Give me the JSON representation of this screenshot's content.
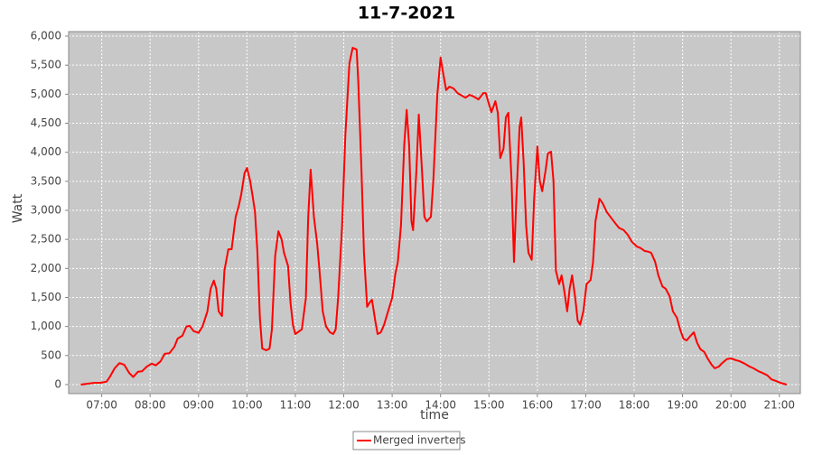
{
  "chart_data": {
    "type": "line",
    "title": "11-7-2021",
    "x_label": "time",
    "y_label": "Watt",
    "x": [
      "06:34",
      "06:45",
      "06:51",
      "06:59",
      "07:06",
      "07:10",
      "07:16",
      "07:22",
      "07:28",
      "07:34",
      "07:39",
      "07:45",
      "07:50",
      "07:56",
      "08:02",
      "08:07",
      "08:13",
      "08:18",
      "08:24",
      "08:30",
      "08:34",
      "08:40",
      "08:45",
      "08:49",
      "08:54",
      "09:00",
      "09:05",
      "09:11",
      "09:15",
      "09:19",
      "09:22",
      "09:25",
      "09:29",
      "09:32",
      "09:37",
      "09:41",
      "09:46",
      "09:50",
      "09:53",
      "09:57",
      "10:00",
      "10:04",
      "10:07",
      "10:10",
      "10:13",
      "10:16",
      "10:19",
      "10:24",
      "10:28",
      "10:31",
      "10:35",
      "10:39",
      "10:43",
      "10:46",
      "10:51",
      "10:54",
      "10:57",
      "11:00",
      "11:05",
      "11:08",
      "11:13",
      "11:16",
      "11:19",
      "11:23",
      "11:27",
      "11:30",
      "11:34",
      "11:38",
      "11:43",
      "11:47",
      "11:50",
      "11:53",
      "11:58",
      "12:02",
      "12:07",
      "12:11",
      "12:16",
      "12:18",
      "12:22",
      "12:25",
      "12:29",
      "12:32",
      "12:35",
      "12:39",
      "12:42",
      "12:46",
      "12:50",
      "12:55",
      "13:00",
      "13:04",
      "13:07",
      "13:11",
      "13:15",
      "13:18",
      "13:21",
      "13:24",
      "13:26",
      "13:30",
      "13:33",
      "13:37",
      "13:40",
      "13:43",
      "13:48",
      "13:51",
      "13:56",
      "14:00",
      "14:03",
      "14:07",
      "14:11",
      "14:16",
      "14:21",
      "14:27",
      "14:31",
      "14:36",
      "14:41",
      "14:47",
      "14:53",
      "14:56",
      "15:00",
      "15:03",
      "15:08",
      "15:11",
      "15:14",
      "15:18",
      "15:21",
      "15:24",
      "15:28",
      "15:31",
      "15:34",
      "15:38",
      "15:40",
      "15:43",
      "15:46",
      "15:49",
      "15:53",
      "15:56",
      "16:00",
      "16:03",
      "16:06",
      "16:10",
      "16:13",
      "16:17",
      "16:20",
      "16:23",
      "16:27",
      "16:30",
      "16:33",
      "16:37",
      "16:40",
      "16:43",
      "16:47",
      "16:50",
      "16:53",
      "16:57",
      "17:01",
      "17:06",
      "17:09",
      "17:12",
      "17:17",
      "17:21",
      "17:26",
      "17:31",
      "17:37",
      "17:41",
      "17:47",
      "17:52",
      "17:57",
      "18:03",
      "18:08",
      "18:13",
      "18:17",
      "18:21",
      "18:26",
      "18:30",
      "18:35",
      "18:39",
      "18:44",
      "18:48",
      "18:53",
      "18:57",
      "19:01",
      "19:05",
      "19:10",
      "19:14",
      "19:18",
      "19:22",
      "19:27",
      "19:31",
      "19:36",
      "19:40",
      "19:45",
      "19:49",
      "19:55",
      "20:00",
      "20:06",
      "20:11",
      "20:17",
      "20:23",
      "20:28",
      "20:34",
      "20:39",
      "20:45",
      "20:50",
      "20:56",
      "21:01",
      "21:09"
    ],
    "series": [
      {
        "name": "Merged inverters",
        "color": "#ff0000",
        "values": [
          0,
          20,
          30,
          30,
          50,
          130,
          280,
          370,
          340,
          200,
          130,
          220,
          230,
          310,
          360,
          330,
          400,
          530,
          540,
          650,
          790,
          840,
          1000,
          1010,
          920,
          890,
          1000,
          1260,
          1650,
          1790,
          1650,
          1260,
          1180,
          1960,
          2330,
          2330,
          2890,
          3080,
          3280,
          3640,
          3730,
          3510,
          3250,
          2970,
          2270,
          1150,
          620,
          590,
          620,
          950,
          2210,
          2640,
          2500,
          2270,
          2040,
          1410,
          1030,
          870,
          920,
          950,
          1490,
          2890,
          3700,
          2890,
          2430,
          1960,
          1260,
          1000,
          900,
          870,
          950,
          1490,
          2740,
          4290,
          5530,
          5800,
          5770,
          5220,
          3670,
          2270,
          1340,
          1410,
          1460,
          1100,
          870,
          900,
          1030,
          1260,
          1490,
          1910,
          2110,
          2740,
          4130,
          4730,
          4130,
          2810,
          2660,
          3670,
          4650,
          3670,
          2890,
          2810,
          2890,
          3510,
          4990,
          5630,
          5380,
          5070,
          5130,
          5100,
          5020,
          4970,
          4940,
          4990,
          4960,
          4910,
          5020,
          5020,
          4830,
          4690,
          4880,
          4680,
          3900,
          4060,
          4600,
          4680,
          3510,
          2110,
          3200,
          4440,
          4600,
          3820,
          2740,
          2270,
          2150,
          3200,
          4100,
          3510,
          3330,
          3670,
          3980,
          4010,
          3510,
          1960,
          1730,
          1880,
          1650,
          1260,
          1650,
          1880,
          1490,
          1100,
          1030,
          1260,
          1730,
          1800,
          2110,
          2810,
          3200,
          3120,
          2970,
          2880,
          2770,
          2700,
          2660,
          2580,
          2460,
          2380,
          2350,
          2300,
          2290,
          2270,
          2110,
          1880,
          1690,
          1650,
          1520,
          1260,
          1150,
          950,
          790,
          760,
          840,
          900,
          720,
          610,
          560,
          450,
          340,
          280,
          310,
          370,
          440,
          450,
          420,
          400,
          360,
          310,
          280,
          230,
          200,
          160,
          90,
          60,
          30,
          0
        ]
      }
    ],
    "xlim": [
      "06:19",
      "21:26"
    ],
    "xticks": [
      "07:00",
      "08:00",
      "09:00",
      "10:00",
      "11:00",
      "12:00",
      "13:00",
      "14:00",
      "15:00",
      "16:00",
      "17:00",
      "18:00",
      "19:00",
      "20:00",
      "21:00"
    ],
    "ylim": [
      -156,
      6078
    ],
    "yticks": [
      0,
      500,
      {
        "value": 1000,
        "label": "1,000"
      },
      {
        "value": 1500,
        "label": "1,500"
      },
      {
        "value": 2000,
        "label": "2,000"
      },
      {
        "value": 2500,
        "label": "2,500"
      },
      {
        "value": 3000,
        "label": "3,000"
      },
      {
        "value": 3500,
        "label": "3,500"
      },
      {
        "value": 4000,
        "label": "4,000"
      },
      {
        "value": 4500,
        "label": "4,500"
      },
      {
        "value": 5000,
        "label": "5,000"
      },
      {
        "value": 5500,
        "label": "5,500"
      },
      {
        "value": 6000,
        "label": "6,000"
      }
    ],
    "grid": true,
    "legend": "bottom"
  }
}
